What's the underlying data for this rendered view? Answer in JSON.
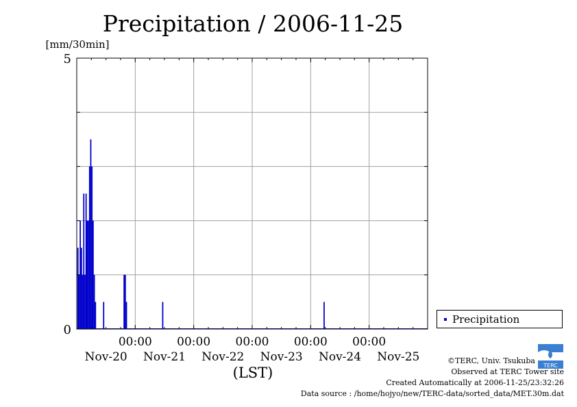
{
  "page": {
    "copyright": "©TERC, Univ. Tsukuba",
    "site": "Observed at TERC Tower site",
    "created": "Created Automatically at 2006-11-25/23:32:26",
    "source": "Data source : /home/hojyo/new/TERC-data/sorted_data/MET.30m.dat",
    "logo_text": "TERC"
  },
  "chart_data": {
    "type": "bar",
    "title": "Precipitation / 2006-11-25",
    "ylabel": "[mm/30min]",
    "xlabel": "(LST)",
    "ylim": [
      0,
      5
    ],
    "y_ticks": [
      "0",
      "5"
    ],
    "y_minor_steps": 5,
    "x_range_days": [
      0,
      6
    ],
    "x_time_labels": [
      "00:00",
      "00:00",
      "00:00",
      "00:00",
      "00:00"
    ],
    "x_date_labels": [
      "Nov-20",
      "Nov-21",
      "Nov-22",
      "Nov-23",
      "Nov-24",
      "Nov-25"
    ],
    "grid": true,
    "legend": {
      "position": "right",
      "entries": [
        "Precipitation"
      ]
    },
    "colors": {
      "bar": "#0000cc",
      "grid": "#a0a0a0"
    },
    "series": [
      {
        "name": "Precipitation",
        "x_day": [
          0.02,
          0.04,
          0.06,
          0.08,
          0.1,
          0.12,
          0.14,
          0.16,
          0.18,
          0.2,
          0.22,
          0.24,
          0.26,
          0.28,
          0.3,
          0.32,
          0.46,
          0.81,
          0.83,
          0.85,
          1.47,
          4.23
        ],
        "values": [
          1.5,
          1.0,
          2.0,
          1.5,
          1.0,
          2.5,
          1.0,
          2.5,
          2.0,
          2.0,
          3.0,
          3.5,
          3.0,
          2.0,
          1.0,
          0.5,
          0.5,
          1.0,
          1.0,
          0.5,
          0.5,
          0.5
        ]
      }
    ]
  }
}
